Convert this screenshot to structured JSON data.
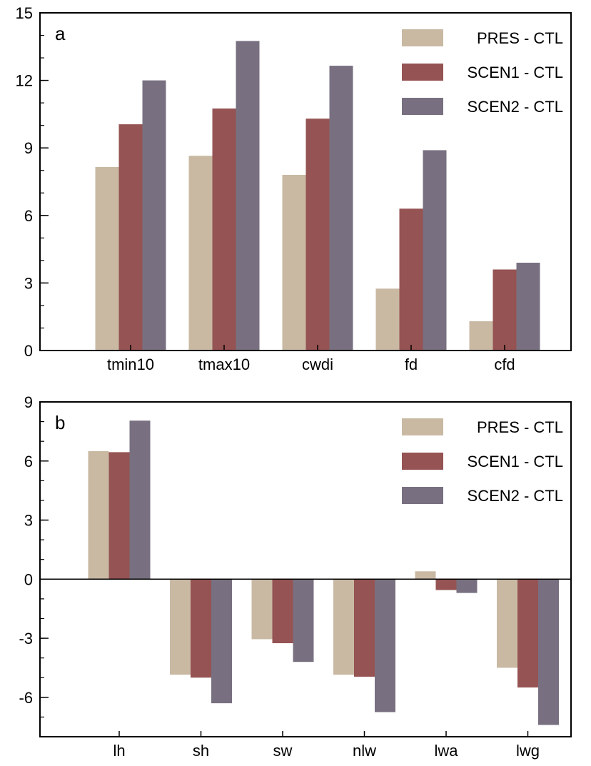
{
  "figure": {
    "colors": [
      "#c9b9a3",
      "#955353",
      "#787080"
    ]
  },
  "chart_data": [
    {
      "type": "bar",
      "panel_label": "a",
      "categories": [
        "tmin10",
        "tmax10",
        "cwdi",
        "fd",
        "cfd"
      ],
      "series": [
        {
          "name": "PRES - CTL",
          "color": "#c9b9a3",
          "values": [
            8.15,
            8.65,
            7.8,
            2.75,
            1.3
          ]
        },
        {
          "name": "SCEN1 - CTL",
          "color": "#955353",
          "values": [
            10.05,
            10.75,
            10.3,
            6.3,
            3.6
          ]
        },
        {
          "name": "SCEN2 - CTL",
          "color": "#787080",
          "values": [
            12.0,
            13.75,
            12.65,
            8.9,
            3.9
          ]
        }
      ],
      "ylim": [
        0,
        15
      ],
      "yticks": [
        "0",
        "3",
        "6",
        "9",
        "12",
        "15"
      ],
      "xlabel": "",
      "ylabel": "",
      "legend": "top-right",
      "grid": false
    },
    {
      "type": "bar",
      "panel_label": "b",
      "categories": [
        "lh",
        "sh",
        "sw",
        "nlw",
        "lwa",
        "lwg"
      ],
      "series": [
        {
          "name": "PRES - CTL",
          "color": "#c9b9a3",
          "values": [
            6.5,
            -4.85,
            -3.05,
            -4.85,
            0.4,
            -4.5
          ]
        },
        {
          "name": "SCEN1 - CTL",
          "color": "#955353",
          "values": [
            6.45,
            -5.0,
            -3.25,
            -4.95,
            -0.55,
            -5.5
          ]
        },
        {
          "name": "SCEN2 - CTL",
          "color": "#787080",
          "values": [
            8.05,
            -6.3,
            -4.2,
            -6.75,
            -0.7,
            -7.4
          ]
        }
      ],
      "ylim": [
        -8,
        9
      ],
      "yticks": [
        "-6",
        "-3",
        "0",
        "3",
        "6",
        "9"
      ],
      "xlabel": "",
      "ylabel": "",
      "legend": "top-right",
      "grid": false,
      "zero_line": true
    }
  ]
}
